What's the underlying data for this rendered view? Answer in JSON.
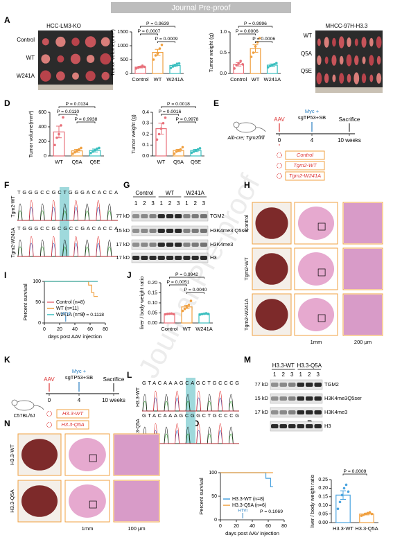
{
  "header": {
    "title": "Journal Pre-proof"
  },
  "panels": [
    "A",
    "D",
    "E",
    "F",
    "G",
    "H",
    "I",
    "J",
    "K",
    "L",
    "M",
    "N",
    "O",
    "P"
  ],
  "photos_A": {
    "left_title": "HCC-LM3-KO",
    "left_rows": [
      "Control",
      "WT",
      "W241A"
    ],
    "right_title": "MHCC-97H-H3.3",
    "right_rows": [
      "WT",
      "Q5A",
      "Q5E"
    ]
  },
  "scheme_E": {
    "aav": "AAV",
    "injection": [
      "Myc +",
      "sgTP53+SB"
    ],
    "end": "Sacrifice",
    "times": [
      "0",
      "4",
      "10 weeks"
    ],
    "mouse": "Alb-cre; Tgm2fl/fl",
    "groups": [
      "Control",
      "Tgm2-WT",
      "Tgm2-W241A"
    ]
  },
  "seq_F": {
    "rows": [
      "Tgm2-WT",
      "Tgm2-W241A"
    ],
    "sequences": [
      "TGGGCCGCTGGGACACCA",
      "TGGGCCGCGCCGACACCA"
    ]
  },
  "blot_G": {
    "groups": [
      "Control",
      "WT",
      "W241A"
    ],
    "lanes": [
      "1",
      "2",
      "3"
    ],
    "sizes": [
      "77 kD",
      "15 kD",
      "17 kD",
      "17 kD"
    ],
    "proteins": [
      "TGM2",
      "H3K4me3 Q5ser",
      "H3K4me3",
      "H3"
    ]
  },
  "histology_H": {
    "rows": [
      "Control",
      "Tgm2-WT",
      "Tgm2-W241A"
    ],
    "scale_bars": [
      "1mm",
      "200 μm"
    ]
  },
  "scheme_K": {
    "mouse": "C57BL/6J",
    "aav": "AAV",
    "injection": [
      "Myc +",
      "sgTP53+SB"
    ],
    "end": "Sacrifice",
    "times": [
      "0",
      "4",
      "10 weeks"
    ],
    "groups": [
      "H3.3-WT",
      "H3.3-Q5A"
    ]
  },
  "seq_L": {
    "rows": [
      "H3.3-WT",
      "H3.3-Q5A"
    ],
    "sequences": [
      "GTACAAAGCAGCTGCCCG",
      "GTACAAAGCGGCTGCCCG"
    ]
  },
  "blot_M": {
    "groups": [
      "H3.3-WT",
      "H3.3-Q5A"
    ],
    "lanes": [
      "1",
      "2",
      "3"
    ],
    "sizes": [
      "77 kD",
      "15 kD",
      "17 kD"
    ],
    "proteins": [
      "TGM2",
      "H3K4me3Q5ser",
      "H3K4me3",
      "H3"
    ]
  },
  "histology_N": {
    "rows": [
      "H3.3-WT",
      "H3.3-Q5A"
    ],
    "scale_bars": [
      "1mm",
      "100 μm"
    ]
  },
  "chart_data": [
    {
      "type": "bar",
      "ylabel": "Tumor volume(mm³)",
      "categories": [
        "Control",
        "WT",
        "W241A"
      ],
      "colors": [
        "#e8707a",
        "#f0a040",
        "#3bbfbf"
      ],
      "values": [
        230,
        760,
        290
      ],
      "errors": [
        30,
        110,
        40
      ],
      "points": [
        [
          180,
          210,
          240,
          280,
          240
        ],
        [
          500,
          650,
          720,
          900,
          1030
        ],
        [
          200,
          250,
          300,
          350,
          360
        ]
      ],
      "ylim": [
        0,
        1500
      ],
      "yticks": [
        0,
        500,
        1000,
        1500
      ],
      "p_values": [
        "P = 0.9639",
        "P = 0.0007",
        "P = 0.0009"
      ]
    },
    {
      "type": "bar",
      "ylabel": "Tumor weight (g)",
      "categories": [
        "Control",
        "WT",
        "W241A"
      ],
      "colors": [
        "#e8707a",
        "#f0a040",
        "#3bbfbf"
      ],
      "values": [
        0.22,
        0.6,
        0.2
      ],
      "errors": [
        0.04,
        0.09,
        0.03
      ],
      "points": [
        [
          0.12,
          0.2,
          0.25,
          0.3,
          0.22
        ],
        [
          0.4,
          0.5,
          0.65,
          0.75,
          0.85
        ],
        [
          0.15,
          0.18,
          0.2,
          0.22,
          0.25
        ]
      ],
      "ylim": [
        0,
        1.0
      ],
      "yticks": [
        {
          "value": 0,
          "label": "0.0"
        },
        {
          "value": 0.5,
          "label": "0.5"
        },
        {
          "value": 1,
          "label": "1.0"
        }
      ],
      "p_values": [
        "P = 0.9996",
        "P = 0.0006",
        "P = 0.0006"
      ]
    },
    {
      "type": "bar",
      "ylabel": "Tumor volume(mm³)",
      "categories": [
        "WT",
        "Q5A",
        "Q5E"
      ],
      "colors": [
        "#e8707a",
        "#f0a040",
        "#3bbfbf"
      ],
      "values": [
        330,
        70,
        75
      ],
      "errors": [
        80,
        20,
        20
      ],
      "points": [
        [
          150,
          250,
          300,
          420,
          530
        ],
        [
          30,
          50,
          70,
          90,
          110
        ],
        [
          40,
          60,
          80,
          100,
          110
        ]
      ],
      "ylim": [
        0,
        600
      ],
      "yticks": [
        0,
        200,
        400,
        600
      ],
      "p_values": [
        "P = 0.0134",
        "P = 0.0110",
        "P = 0.9938"
      ]
    },
    {
      "type": "bar",
      "ylabel": "Tumor weight (g)",
      "categories": [
        "WT",
        "Q5A",
        "Q5E"
      ],
      "colors": [
        "#e8707a",
        "#f0a040",
        "#3bbfbf"
      ],
      "values": [
        0.25,
        0.05,
        0.05
      ],
      "errors": [
        0.05,
        0.01,
        0.01
      ],
      "points": [
        [
          0.15,
          0.2,
          0.25,
          0.3,
          0.35
        ],
        [
          0.02,
          0.04,
          0.05,
          0.06,
          0.08
        ],
        [
          0.03,
          0.04,
          0.05,
          0.06,
          0.07
        ]
      ],
      "ylim": [
        0,
        0.4
      ],
      "yticks": [
        {
          "value": 0,
          "label": "0.0"
        },
        0.1,
        0.2,
        0.3,
        0.4
      ],
      "p_values": [
        "P = 0.0018",
        "P = 0.0016",
        "P = 0.9978"
      ]
    },
    {
      "type": "line",
      "ylabel": "Percent survival",
      "xlabel": "days post AAV injection",
      "xlim": [
        0,
        80
      ],
      "xticks": [
        0,
        20,
        40,
        60,
        80
      ],
      "ylim": [
        0,
        100
      ],
      "yticks": [
        0,
        50,
        100
      ],
      "series": [
        {
          "name": "Control (n=8)",
          "color": "#e8707a",
          "x": [
            0,
            70
          ],
          "values": [
            100,
            100
          ]
        },
        {
          "name": "WT (n=11)",
          "color": "#f0a040",
          "x": [
            0,
            58,
            58,
            62,
            62,
            65,
            65,
            70
          ],
          "values": [
            100,
            100,
            91,
            91,
            73,
            73,
            64,
            64
          ]
        },
        {
          "name": "W241A (n=8)",
          "color": "#3bbfbf",
          "x": [
            0,
            70
          ],
          "values": [
            100,
            100
          ]
        }
      ],
      "annotation": "HTVI",
      "p_value": "P = 0.1118"
    },
    {
      "type": "bar",
      "ylabel": "liver / body weight ratio",
      "categories": [
        "Control",
        "WT",
        "W241A"
      ],
      "colors": [
        "#e8707a",
        "#f0a040",
        "#3bbfbf"
      ],
      "values": [
        0.045,
        0.08,
        0.045
      ],
      "errors": [
        0.002,
        0.008,
        0.002
      ],
      "points": [
        [
          0.043,
          0.045,
          0.046,
          0.047,
          0.044
        ],
        [
          0.06,
          0.07,
          0.08,
          0.09,
          0.11
        ],
        [
          0.042,
          0.044,
          0.046,
          0.048,
          0.045
        ]
      ],
      "ylim": [
        0,
        0.2
      ],
      "yticks": [
        {
          "value": 0,
          "label": "0.00"
        },
        0.05,
        {
          "value": 0.1,
          "label": "0.10"
        },
        0.15,
        {
          "value": 0.2,
          "label": "0.20"
        }
      ],
      "p_values": [
        "P = 0.9942",
        "P = 0.0051",
        "P = 0.0040"
      ]
    },
    {
      "type": "line",
      "ylabel": "Percent survival",
      "xlabel": "days post AAV injection",
      "xlim": [
        0,
        80
      ],
      "xticks": [
        0,
        20,
        40,
        60,
        80
      ],
      "ylim": [
        0,
        100
      ],
      "yticks": [
        0,
        50,
        100
      ],
      "series": [
        {
          "name": "H3.3-WT (n=8)",
          "color": "#4aa3df",
          "x": [
            0,
            57,
            57,
            63,
            63,
            66
          ],
          "values": [
            100,
            100,
            88,
            88,
            70,
            70
          ]
        },
        {
          "name": "H3.3-Q5A (n=6)",
          "color": "#f0a040",
          "x": [
            0,
            66
          ],
          "values": [
            100,
            100
          ]
        }
      ],
      "annotation": "HTVI",
      "p_value": "P = 0.1069"
    },
    {
      "type": "bar",
      "ylabel": "liver / body weight ratio",
      "categories": [
        "H3.3-WT",
        "H3.3-Q5A"
      ],
      "colors": [
        "#4aa3df",
        "#f0a040"
      ],
      "values": [
        0.16,
        0.05
      ],
      "errors": [
        0.025,
        0.005
      ],
      "points": [
        [
          0.08,
          0.12,
          0.16,
          0.2,
          0.22,
          0.18
        ],
        [
          0.04,
          0.045,
          0.05,
          0.055,
          0.06,
          0.05
        ]
      ],
      "ylim": [
        0,
        0.25
      ],
      "yticks": [
        {
          "value": 0,
          "label": "0.00"
        },
        0.05,
        {
          "value": 0.1,
          "label": "0.10"
        },
        0.15,
        {
          "value": 0.2,
          "label": "0.20"
        },
        0.25
      ],
      "p_values": [
        "P = 0.0009"
      ]
    }
  ]
}
